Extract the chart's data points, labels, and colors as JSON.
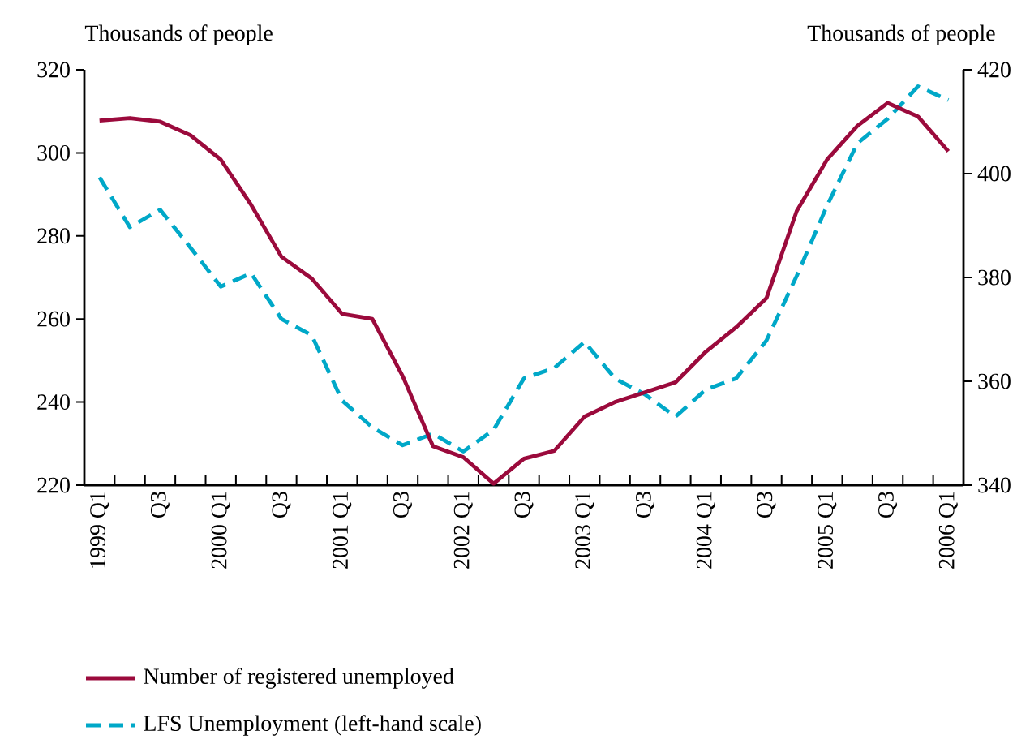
{
  "chart_data": {
    "type": "line",
    "categories": [
      "1999 Q1",
      null,
      "Q3",
      null,
      "2000 Q1",
      null,
      "Q3",
      null,
      "2001 Q1",
      null,
      "Q3",
      null,
      "2002 Q1",
      null,
      "Q3",
      null,
      "2003 Q1",
      null,
      "Q3",
      null,
      "2004 Q1",
      null,
      "Q3",
      null,
      "2005 Q1",
      null,
      "Q3",
      null,
      "2006 Q1"
    ],
    "series": [
      {
        "name": "Number of registered unemployed",
        "color": "#9b0a3c",
        "axis": "y2",
        "line_style": "solid",
        "values": [
          410.2,
          410.7,
          410,
          407.4,
          402.7,
          394,
          384,
          379.8,
          373,
          372,
          361,
          347.5,
          345.4,
          340.3,
          345.1,
          346.6,
          353.2,
          356,
          357.9,
          359.8,
          365.7,
          370.4,
          376,
          392.8,
          402.7,
          409.2,
          413.6,
          411,
          404.3
        ]
      },
      {
        "name": "LFS Unemployment (left-hand scale)",
        "color": "#00a8c8",
        "axis": "y",
        "line_style": "dashed",
        "values": [
          294.1,
          282.1,
          286.3,
          277.2,
          267.8,
          271,
          260,
          256.1,
          240.4,
          233.9,
          229.6,
          232.4,
          228.1,
          233.3,
          245.7,
          248.2,
          254.5,
          245.7,
          241.8,
          236.5,
          243,
          245.7,
          254.8,
          270.4,
          287.3,
          302.3,
          308.2,
          316,
          312.7
        ]
      }
    ],
    "ylabel": "Thousands of people",
    "y2label": "Thousands of people",
    "ylim": [
      220,
      320
    ],
    "yticks": [
      220,
      240,
      260,
      280,
      300,
      320
    ],
    "y2lim": [
      340,
      420
    ],
    "y2ticks": [
      340,
      360,
      380,
      400,
      420
    ],
    "legend": "bottom"
  }
}
